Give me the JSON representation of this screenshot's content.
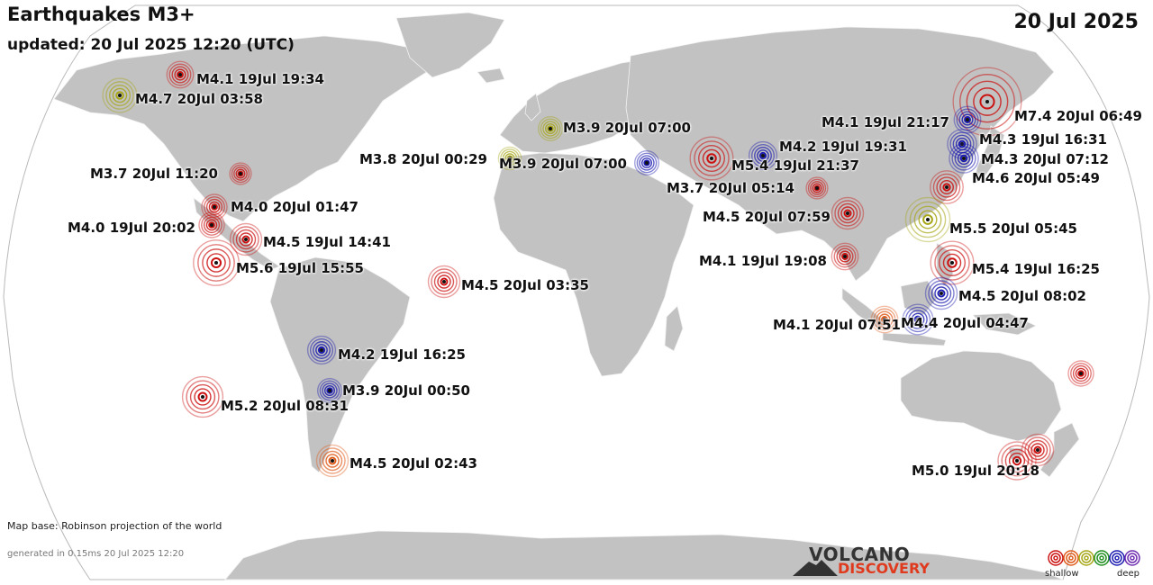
{
  "header": {
    "title": "Earthquakes M3+",
    "updated": "updated: 20 Jul 2025 12:20 (UTC)",
    "date": "20 Jul 2025"
  },
  "footer": {
    "map_base": "Map base: Robinson projection of the world",
    "generated": "generated in 0.15ms 20 Jul 2025 12:20"
  },
  "brand": {
    "top": "VOLCANO",
    "bottom": "DISCOVERY"
  },
  "legend": {
    "shallow_label": "shallow",
    "deep_label": "deep",
    "colors": [
      "#cc1111",
      "#e05a1a",
      "#a6a616",
      "#1f8f1f",
      "#1b1bb0",
      "#6d2bb0"
    ]
  },
  "colors": {
    "ocean": "#ffffff",
    "land": "#c2c2c2",
    "border": "#f2f2f2",
    "outline": "#b9b9b9"
  },
  "quakes": [
    {
      "label": "M4.1 19Jul 19:34",
      "color": "#cc1111",
      "mag": 4.1
    },
    {
      "label": "M4.7 20Jul 03:58",
      "color": "#a6a616",
      "mag": 4.7
    },
    {
      "label": "M3.7 20Jul 11:20",
      "color": "#cc1111",
      "mag": 3.7
    },
    {
      "label": "M4.0 20Jul 01:47",
      "color": "#cc1111",
      "mag": 4.0
    },
    {
      "label": "M4.0 19Jul 20:02",
      "color": "#cc1111",
      "mag": 4.0
    },
    {
      "label": "M4.5 19Jul 14:41",
      "color": "#cc1111",
      "mag": 4.5
    },
    {
      "label": "M5.6 19Jul 15:55",
      "color": "#cc1111",
      "mag": 5.6
    },
    {
      "label": "M4.5 20Jul 03:35",
      "color": "#cc1111",
      "mag": 4.5
    },
    {
      "label": "M4.2 19Jul 16:25",
      "color": "#1b1bb0",
      "mag": 4.2
    },
    {
      "label": "M3.9 20Jul 00:50",
      "color": "#1b1bb0",
      "mag": 3.9
    },
    {
      "label": "M5.2 20Jul 08:31",
      "color": "#cc1111",
      "mag": 5.2
    },
    {
      "label": "M4.5 20Jul 02:43",
      "color": "#e05a1a",
      "mag": 4.5
    },
    {
      "label": "M3.9 20Jul 07:00",
      "color": "#a6a616",
      "mag": 3.9
    },
    {
      "label": "M3.8 20Jul 00:29",
      "color": "#a6a616",
      "mag": 3.8
    },
    {
      "label": "M3.9 20Jul 07:00",
      "color": "#1b1bb0",
      "mag": 3.9
    },
    {
      "label": "M5.4 19Jul 21:37",
      "color": "#cc1111",
      "mag": 5.4
    },
    {
      "label": "M4.2 19Jul 19:31",
      "color": "#1b1bb0",
      "mag": 4.2
    },
    {
      "label": "M3.7 20Jul 05:14",
      "color": "#cc1111",
      "mag": 3.7
    },
    {
      "label": "M4.5 20Jul 07:59",
      "color": "#cc1111",
      "mag": 4.5
    },
    {
      "label": "M4.1 19Jul 19:08",
      "color": "#cc1111",
      "mag": 4.1
    },
    {
      "label": "M4.1 20Jul 07:51",
      "color": "#e05a1a",
      "mag": 4.1
    },
    {
      "label": "M4.4 20Jul 04:47",
      "color": "#1b1bb0",
      "mag": 4.4
    },
    {
      "label": "M7.4 20Jul 06:49",
      "color": "#cc1111",
      "mag": 7.4
    },
    {
      "label": "M4.1 19Jul 21:17",
      "color": "#1b1bb0",
      "mag": 4.1
    },
    {
      "label": "M4.3 19Jul 16:31",
      "color": "#1b1bb0",
      "mag": 4.3
    },
    {
      "label": "M4.3 20Jul 07:12",
      "color": "#1b1bb0",
      "mag": 4.3
    },
    {
      "label": "M4.6 20Jul 05:49",
      "color": "#cc1111",
      "mag": 4.6
    },
    {
      "label": "M5.5 20Jul 05:45",
      "color": "#a6a616",
      "mag": 5.5
    },
    {
      "label": "M5.4 19Jul 16:25",
      "color": "#cc1111",
      "mag": 5.4
    },
    {
      "label": "M4.5 20Jul 08:02",
      "color": "#1b1bb0",
      "mag": 4.5
    },
    {
      "label": "",
      "color": "#cc1111",
      "mag": 4.0
    },
    {
      "label": "M5.0 19Jul 20:18",
      "color": "#cc1111",
      "mag": 5.0
    },
    {
      "label": "",
      "color": "#cc1111",
      "mag": 4.5
    }
  ]
}
